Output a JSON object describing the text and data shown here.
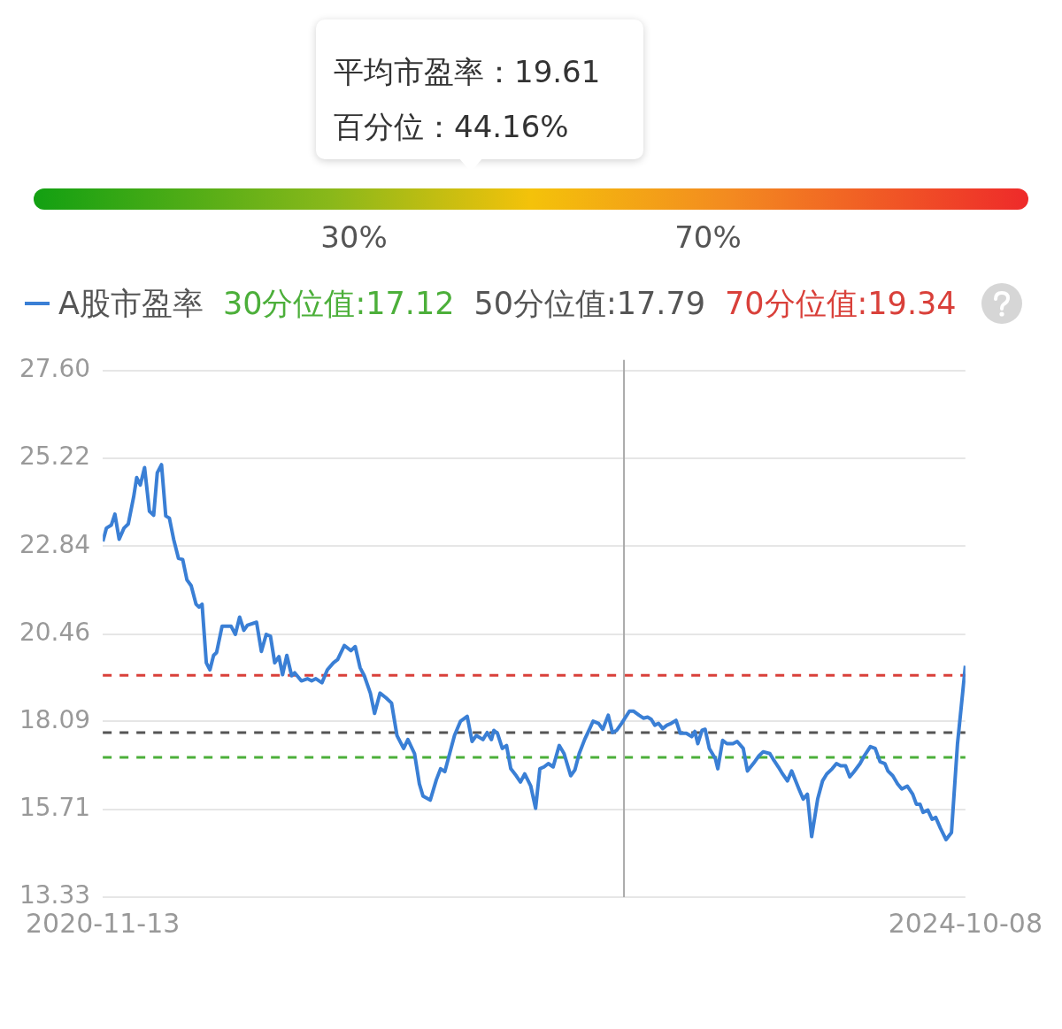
{
  "chart_data": [
    {
      "type": "other",
      "annotations": [
        "平均市盈率：19.61",
        "百分位：44.16%",
        "30%",
        "70%"
      ]
    },
    {
      "type": "line",
      "legend": "top",
      "grid": "y",
      "marker": "none",
      "line_style": "solid",
      "xlim": [
        "2020-11-13",
        "2024-10-08"
      ],
      "xticks": [
        "2020-11-13",
        "2024-10-08"
      ],
      "ylim": [
        13.33,
        27.6
      ],
      "yticks": [
        13.33,
        15.71,
        18.09,
        20.46,
        22.84,
        25.22,
        {
          "value": 27.6,
          "label": "27.60"
        }
      ],
      "ref_lines": [
        {
          "axis": "y",
          "value": 17.12,
          "label": "30分位值:17.12",
          "color": "#4caf3a",
          "line_style": "dashed"
        },
        {
          "axis": "y",
          "value": 17.79,
          "label": "50分位值:17.79",
          "color": "#555555",
          "line_style": "dashed"
        },
        {
          "axis": "y",
          "value": 19.34,
          "label": "70分位值:19.34",
          "color": "#d9403a",
          "line_style": "dashed"
        },
        {
          "axis": "x",
          "value": "2023-03-24",
          "color": "#aaaaaa",
          "line_style": "solid"
        }
      ],
      "series": [
        {
          "name": "A股市盈率",
          "color": "#3a7fd5",
          "x": [
            "2020-11-13",
            "2020-11-19",
            "2020-11-27",
            "2020-12-03",
            "2020-12-10",
            "2020-12-18",
            "2020-12-25",
            "2021-01-03",
            "2021-01-08",
            "2021-01-14",
            "2021-01-21",
            "2021-01-29",
            "2021-02-05",
            "2021-02-11",
            "2021-02-18",
            "2021-02-25",
            "2021-03-03",
            "2021-03-10",
            "2021-03-18",
            "2021-03-25",
            "2021-04-01",
            "2021-04-08",
            "2021-04-16",
            "2021-04-21",
            "2021-04-26",
            "2021-05-03",
            "2021-05-09",
            "2021-05-15",
            "2021-05-20",
            "2021-05-29",
            "2021-06-13",
            "2021-06-20",
            "2021-06-27",
            "2021-07-04",
            "2021-07-10",
            "2021-07-25",
            "2021-08-02",
            "2021-08-10",
            "2021-08-17",
            "2021-08-24",
            "2021-08-31",
            "2021-09-06",
            "2021-09-13",
            "2021-09-21",
            "2021-09-26",
            "2021-10-07",
            "2021-10-17",
            "2021-10-24",
            "2021-10-31",
            "2021-11-10",
            "2021-11-19",
            "2021-11-29",
            "2021-12-06",
            "2021-12-17",
            "2021-12-28",
            "2022-01-04",
            "2022-01-12",
            "2022-01-19",
            "2022-01-29",
            "2022-02-05",
            "2022-02-14",
            "2022-02-24",
            "2022-03-05",
            "2022-03-14",
            "2022-03-25",
            "2022-04-01",
            "2022-04-12",
            "2022-04-20",
            "2022-04-26",
            "2022-05-08",
            "2022-05-18",
            "2022-05-25",
            "2022-06-01",
            "2022-06-09",
            "2022-06-17",
            "2022-06-27",
            "2022-07-08",
            "2022-07-16",
            "2022-07-23",
            "2022-08-03",
            "2022-08-10",
            "2022-08-17",
            "2022-08-21",
            "2022-08-27",
            "2022-09-04",
            "2022-09-11",
            "2022-09-18",
            "2022-09-27",
            "2022-10-04",
            "2022-10-11",
            "2022-10-21",
            "2022-10-29",
            "2022-11-05",
            "2022-11-12",
            "2022-11-19",
            "2022-11-27",
            "2022-12-07",
            "2022-12-15",
            "2022-12-26",
            "2023-01-02",
            "2023-01-09",
            "2023-01-18",
            "2023-01-26",
            "2023-02-01",
            "2023-02-10",
            "2023-02-17",
            "2023-02-26",
            "2023-03-05",
            "2023-03-12",
            "2023-03-20",
            "2023-04-02",
            "2023-04-09",
            "2023-04-18",
            "2023-04-25",
            "2023-05-02",
            "2023-05-08",
            "2023-05-14",
            "2023-05-20",
            "2023-05-27",
            "2023-06-03",
            "2023-06-10",
            "2023-06-18",
            "2023-06-25",
            "2023-07-05",
            "2023-07-14",
            "2023-07-19",
            "2023-07-24",
            "2023-07-31",
            "2023-08-05",
            "2023-08-12",
            "2023-08-22",
            "2023-08-26",
            "2023-09-03",
            "2023-09-10",
            "2023-09-20",
            "2023-09-27",
            "2023-10-07",
            "2023-10-14",
            "2023-10-26",
            "2023-11-02",
            "2023-11-09",
            "2023-11-20",
            "2023-11-27",
            "2023-12-04",
            "2023-12-11",
            "2023-12-19",
            "2023-12-26",
            "2024-01-07",
            "2024-01-14",
            "2024-01-21",
            "2024-01-28",
            "2024-02-07",
            "2024-02-15",
            "2024-02-22",
            "2024-03-02",
            "2024-03-09",
            "2024-03-16",
            "2024-03-24",
            "2024-03-31",
            "2024-04-07",
            "2024-04-17",
            "2024-04-24",
            "2024-05-04",
            "2024-05-12",
            "2024-05-20",
            "2024-05-28",
            "2024-06-02",
            "2024-06-10",
            "2024-06-18",
            "2024-06-25",
            "2024-07-04",
            "2024-07-13",
            "2024-07-19",
            "2024-07-25",
            "2024-07-30",
            "2024-08-07",
            "2024-08-14",
            "2024-08-20",
            "2024-08-28",
            "2024-09-06",
            "2024-09-15",
            "2024-09-25",
            "2024-10-08"
          ],
          "values": [
            22.97,
            23.33,
            23.41,
            23.71,
            23.03,
            23.33,
            23.44,
            24.18,
            24.7,
            24.5,
            24.97,
            23.79,
            23.68,
            24.83,
            25.05,
            23.66,
            23.6,
            23.03,
            22.51,
            22.48,
            21.93,
            21.77,
            21.27,
            21.19,
            21.27,
            19.68,
            19.49,
            19.88,
            19.96,
            20.67,
            20.67,
            20.45,
            20.92,
            20.56,
            20.7,
            20.78,
            19.99,
            20.45,
            20.4,
            19.68,
            19.85,
            19.36,
            19.88,
            19.33,
            19.41,
            19.19,
            19.25,
            19.19,
            19.25,
            19.14,
            19.49,
            19.68,
            19.77,
            20.15,
            20.01,
            20.12,
            19.55,
            19.33,
            18.86,
            18.31,
            18.86,
            18.73,
            18.59,
            17.71,
            17.36,
            17.6,
            17.22,
            16.4,
            16.07,
            15.96,
            16.51,
            16.81,
            16.73,
            17.22,
            17.71,
            18.1,
            18.23,
            17.55,
            17.71,
            17.6,
            17.79,
            17.6,
            17.85,
            17.77,
            17.36,
            17.44,
            16.81,
            16.62,
            16.45,
            16.67,
            16.34,
            15.74,
            16.81,
            16.86,
            16.95,
            16.86,
            17.44,
            17.22,
            16.62,
            16.78,
            17.22,
            17.6,
            17.88,
            18.1,
            18.04,
            17.88,
            18.26,
            17.79,
            17.85,
            18.04,
            18.37,
            18.37,
            18.26,
            18.18,
            18.21,
            18.15,
            17.99,
            18.04,
            17.9,
            17.99,
            18.04,
            18.12,
            17.77,
            17.77,
            17.68,
            17.82,
            17.49,
            17.85,
            17.88,
            17.36,
            17.08,
            16.81,
            17.58,
            17.49,
            17.49,
            17.55,
            17.36,
            16.75,
            17.0,
            17.16,
            17.27,
            17.22,
            17.03,
            16.86,
            16.67,
            16.48,
            16.75,
            16.26,
            15.99,
            16.12,
            14.97,
            15.99,
            16.48,
            16.67,
            16.81,
            16.95,
            16.89,
            16.89,
            16.59,
            16.73,
            16.95,
            17.16,
            17.41,
            17.36,
            17.0,
            16.95,
            16.75,
            16.62,
            16.4,
            16.26,
            16.34,
            16.12,
            15.85,
            15.85,
            15.63,
            15.69,
            15.44,
            15.49,
            15.19,
            14.89,
            15.08,
            17.49,
            19.6
          ]
        }
      ]
    }
  ]
}
